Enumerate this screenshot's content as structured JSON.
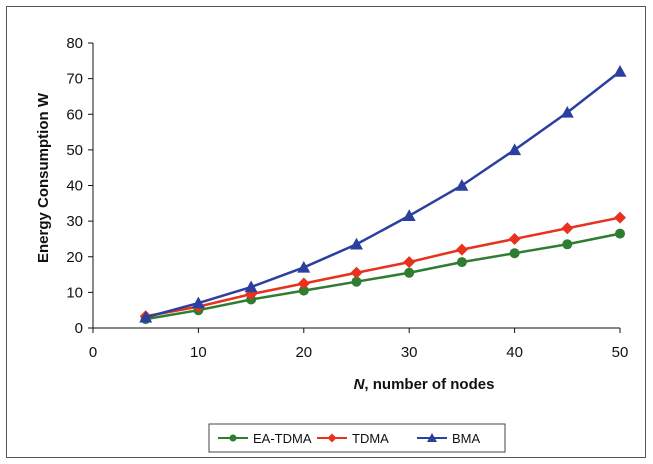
{
  "chart_data": {
    "type": "line",
    "title": "",
    "xlabel_italic": "N",
    "xlabel_rest": ", number of nodes",
    "ylabel": "Energy Consumption W",
    "xlim": [
      0,
      50
    ],
    "ylim": [
      0,
      80
    ],
    "xticks": [
      0,
      10,
      20,
      30,
      40,
      50
    ],
    "yticks": [
      0,
      10,
      20,
      30,
      40,
      50,
      60,
      70,
      80
    ],
    "grid": false,
    "legend_position": "bottom",
    "x": [
      5,
      10,
      15,
      20,
      25,
      30,
      35,
      40,
      45,
      50
    ],
    "series": [
      {
        "name": "EA-TDMA",
        "color": "#2e7d32",
        "marker": "circle",
        "values": [
          2.5,
          5,
          8,
          10.5,
          13,
          15.5,
          18.5,
          21,
          23.5,
          26.5
        ]
      },
      {
        "name": "TDMA",
        "color": "#e8321e",
        "marker": "diamond",
        "values": [
          3.3,
          6,
          9.5,
          12.5,
          15.5,
          18.5,
          22,
          25,
          28,
          31
        ]
      },
      {
        "name": "BMA",
        "color": "#2a3f9e",
        "marker": "triangle",
        "values": [
          3,
          7,
          11.5,
          17,
          23.5,
          31.5,
          40,
          50,
          60.5,
          72
        ]
      }
    ]
  }
}
